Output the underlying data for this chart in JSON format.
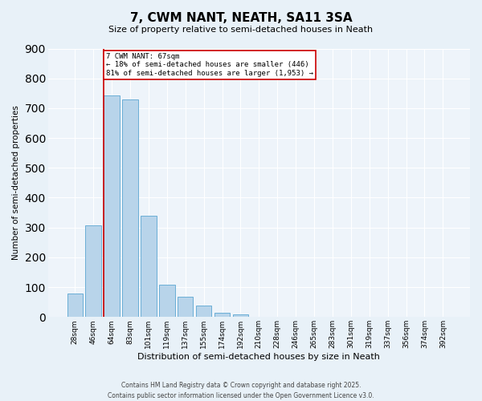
{
  "title": "7, CWM NANT, NEATH, SA11 3SA",
  "subtitle": "Size of property relative to semi-detached houses in Neath",
  "xlabel": "Distribution of semi-detached houses by size in Neath",
  "ylabel": "Number of semi-detached properties",
  "categories": [
    "28sqm",
    "46sqm",
    "64sqm",
    "83sqm",
    "101sqm",
    "119sqm",
    "137sqm",
    "155sqm",
    "174sqm",
    "192sqm",
    "210sqm",
    "228sqm",
    "246sqm",
    "265sqm",
    "283sqm",
    "301sqm",
    "319sqm",
    "337sqm",
    "356sqm",
    "374sqm",
    "392sqm"
  ],
  "values": [
    80,
    308,
    742,
    728,
    340,
    108,
    68,
    38,
    13,
    8,
    0,
    0,
    0,
    0,
    0,
    0,
    0,
    0,
    0,
    0,
    0
  ],
  "bar_color": "#b8d4ea",
  "bar_edge_color": "#6aaed6",
  "marker_line_color": "#cc0000",
  "annotation_title": "7 CWM NANT: 67sqm",
  "annotation_line1": "← 18% of semi-detached houses are smaller (446)",
  "annotation_line2": "81% of semi-detached houses are larger (1,953) →",
  "annotation_box_color": "#ffffff",
  "annotation_box_edge_color": "#cc0000",
  "ylim": [
    0,
    900
  ],
  "yticks": [
    0,
    100,
    200,
    300,
    400,
    500,
    600,
    700,
    800,
    900
  ],
  "footer1": "Contains HM Land Registry data © Crown copyright and database right 2025.",
  "footer2": "Contains public sector information licensed under the Open Government Licence v3.0.",
  "bg_color": "#e8f1f8",
  "plot_bg_color": "#eef4fa",
  "grid_color": "#ffffff",
  "title_fontsize": 11,
  "subtitle_fontsize": 8,
  "xlabel_fontsize": 8,
  "ylabel_fontsize": 7.5,
  "tick_fontsize": 6.5,
  "footer_fontsize": 5.5
}
